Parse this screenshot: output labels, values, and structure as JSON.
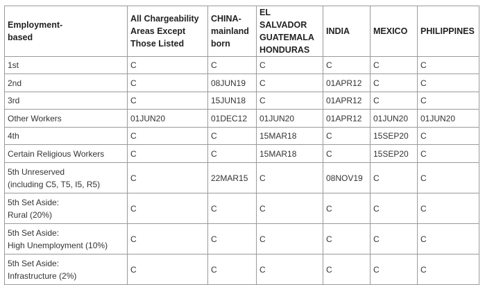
{
  "table": {
    "header": [
      [
        "Employment-",
        "based"
      ],
      [
        "All Chargeability",
        "Areas Except",
        "Those Listed"
      ],
      [
        "CHINA-",
        "mainland",
        "born"
      ],
      [
        "EL SALVADOR",
        "GUATEMALA",
        "HONDURAS"
      ],
      [
        "INDIA"
      ],
      [
        "MEXICO"
      ],
      [
        "PHILIPPINES"
      ]
    ],
    "rows": [
      [
        [
          "1st"
        ],
        "C",
        "C",
        "C",
        "C",
        "C",
        "C"
      ],
      [
        [
          "2nd"
        ],
        "C",
        "08JUN19",
        "C",
        "01APR12",
        "C",
        "C"
      ],
      [
        [
          "3rd"
        ],
        "C",
        "15JUN18",
        "C",
        "01APR12",
        "C",
        "C"
      ],
      [
        [
          "Other Workers"
        ],
        "01JUN20",
        "01DEC12",
        "01JUN20",
        "01APR12",
        "01JUN20",
        "01JUN20"
      ],
      [
        [
          "4th"
        ],
        "C",
        "C",
        "15MAR18",
        "C",
        "15SEP20",
        "C"
      ],
      [
        [
          "Certain Religious Workers"
        ],
        "C",
        "C",
        "15MAR18",
        "C",
        "15SEP20",
        "C"
      ],
      [
        [
          "5th Unreserved",
          "(including C5, T5, I5, R5)"
        ],
        "C",
        "22MAR15",
        "C",
        "08NOV19",
        "C",
        "C"
      ],
      [
        [
          "5th Set Aside:",
          "Rural (20%)"
        ],
        "C",
        "C",
        "C",
        "C",
        "C",
        "C"
      ],
      [
        [
          "5th Set Aside:",
          "High Unemployment (10%)"
        ],
        "C",
        "C",
        "C",
        "C",
        "C",
        "C"
      ],
      [
        [
          "5th Set Aside:",
          "Infrastructure (2%)"
        ],
        "C",
        "C",
        "C",
        "C",
        "C",
        "C"
      ]
    ]
  }
}
